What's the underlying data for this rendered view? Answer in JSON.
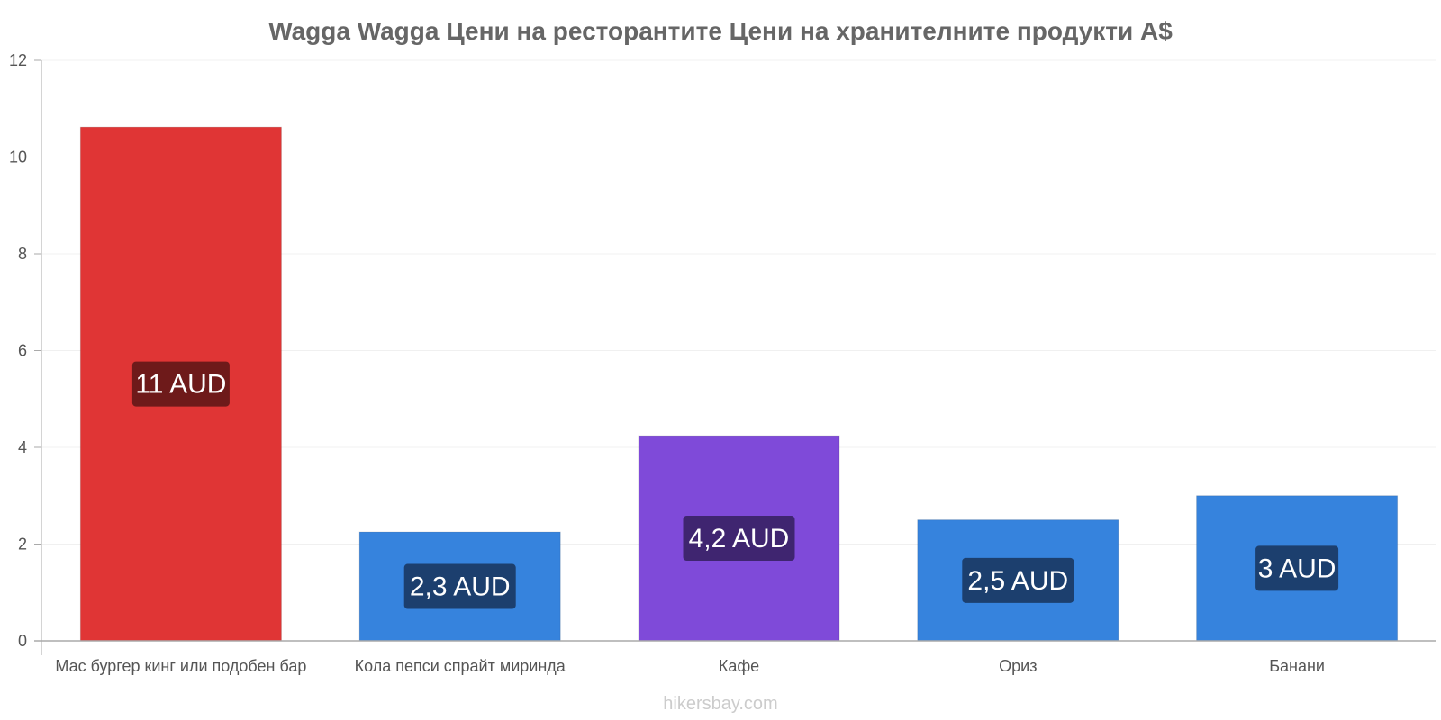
{
  "chart_data": {
    "type": "bar",
    "title": "Wagga Wagga Цени на ресторантите Цени на хранителните продукти A$",
    "categories": [
      "Мас бургер кинг или подобен бар",
      "Кола пепси спрайт миринда",
      "Кафе",
      "Ориз",
      "Банани"
    ],
    "values": [
      10.62,
      2.25,
      4.24,
      2.5,
      3.0
    ],
    "data_labels": [
      "11 AUD",
      "2,3 AUD",
      "4,2 AUD",
      "2,5 AUD",
      "3 AUD"
    ],
    "bar_colors": [
      "#e03535",
      "#3683dd",
      "#7f4ad9",
      "#3683dd",
      "#3683dd"
    ],
    "label_bg_colors": [
      "#6e1a1a",
      "#1c3f6e",
      "#3f2570",
      "#1c3f6e",
      "#1c3f6e"
    ],
    "yticks": [
      "0",
      "2",
      "4",
      "6",
      "8",
      "10",
      "12"
    ],
    "ylim": [
      0,
      12
    ],
    "grid": true,
    "xlabel": "",
    "ylabel": ""
  },
  "footer": {
    "source": "hikersbay.com"
  }
}
